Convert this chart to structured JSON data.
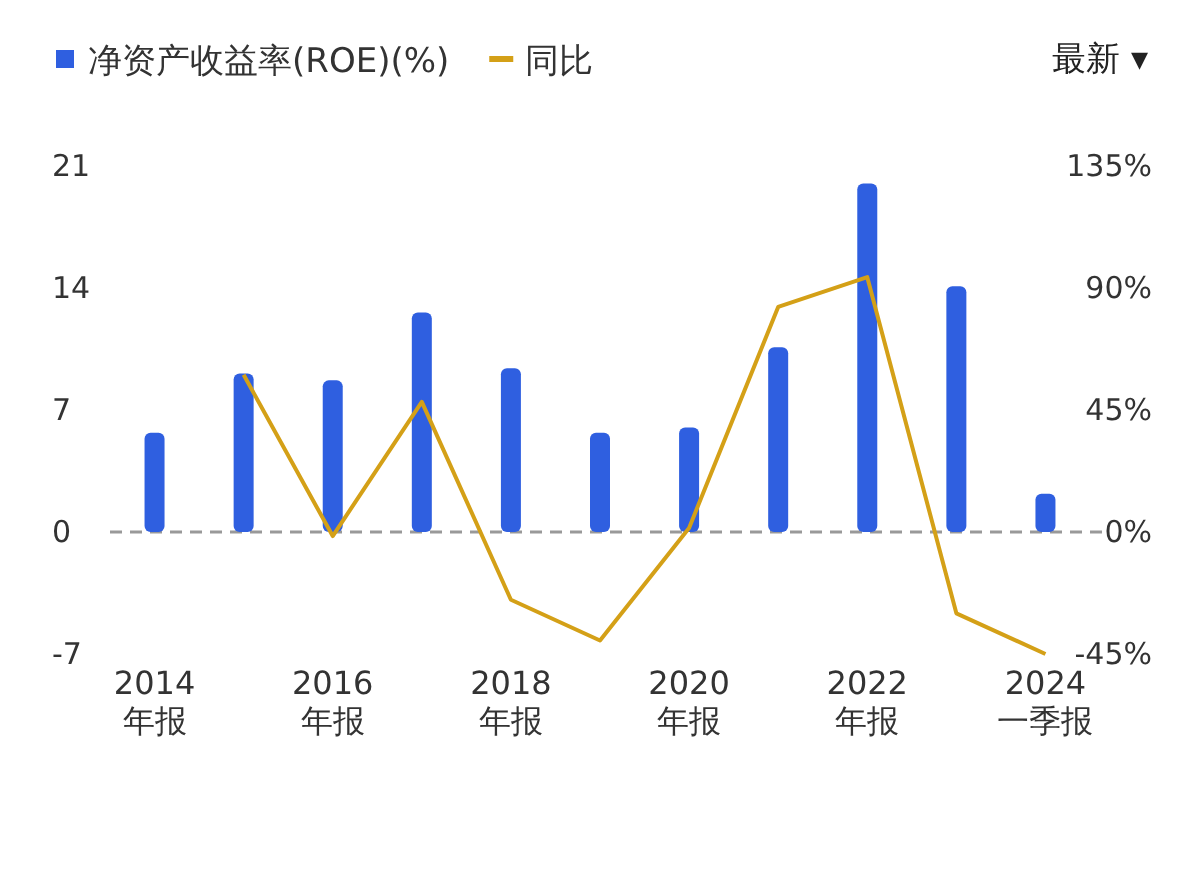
{
  "chart_data": {
    "type": "bar",
    "legend": "top left",
    "annotations": [
      "最新 ▾"
    ],
    "categories": [
      "2014\n年报",
      null,
      "2016\n年报",
      null,
      "2018\n年报",
      null,
      "2020\n年报",
      null,
      "2022\n年报",
      null,
      "2024\n一季报"
    ],
    "series": [
      {
        "name": "净资产收益率(ROE)(%)",
        "color": "#2f5fe0",
        "values": [
          5.7,
          9.1,
          8.7,
          12.6,
          9.4,
          5.7,
          6.0,
          10.6,
          20.0,
          14.1,
          2.2
        ]
      },
      {
        "name": "同比",
        "type": "line",
        "axis": "y2",
        "color": "#d4a017",
        "values": [
          null,
          58,
          -1.5,
          48,
          -25,
          -40,
          1.5,
          83,
          94,
          -30,
          -45
        ]
      }
    ],
    "ylim": [
      -7,
      21
    ],
    "yticks": [
      -7,
      0,
      7,
      14,
      21
    ],
    "y2lim": [
      -45,
      135
    ],
    "y2ticks": [
      {
        "value": -45,
        "label": "-45%"
      },
      {
        "value": 0,
        "label": "0%"
      },
      {
        "value": 45,
        "label": "45%"
      },
      {
        "value": 90,
        "label": "90%"
      },
      {
        "value": 135,
        "label": "135%"
      }
    ],
    "ref_lines": [
      {
        "axis": "y",
        "value": 0,
        "color": "#999999",
        "line_style": "dashed"
      }
    ]
  }
}
